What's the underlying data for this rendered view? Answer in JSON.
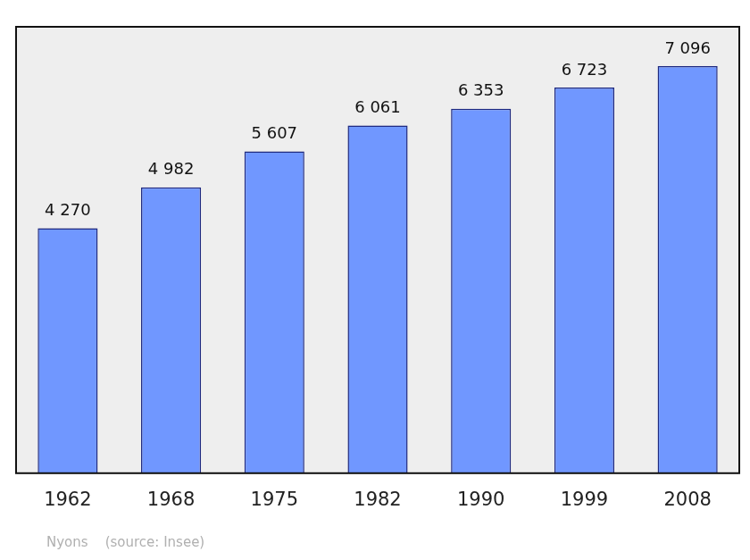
{
  "chart_data": {
    "type": "bar",
    "categories": [
      "1962",
      "1968",
      "1975",
      "1982",
      "1990",
      "1999",
      "2008"
    ],
    "values": [
      4270,
      4982,
      5607,
      6061,
      6353,
      6723,
      7096
    ],
    "value_labels": [
      "4 270",
      "4 982",
      "5 607",
      "6 061",
      "6 353",
      "6 723",
      "7 096"
    ],
    "color": "#7097ff",
    "ylim": [
      0,
      7780
    ],
    "grid": false,
    "data_labels": true,
    "tick_labels": "x",
    "annotation": "Nyons    (source: Insee)"
  }
}
